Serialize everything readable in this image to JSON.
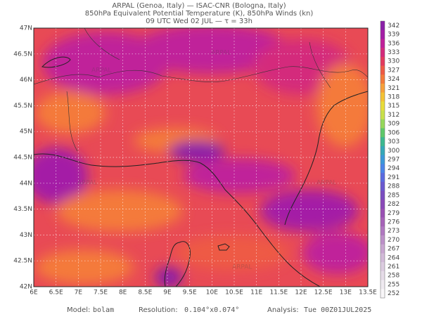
{
  "header": {
    "lines": [
      "ARPAL (Genoa, Italy)  —  ISAC-CNR (Bologna, Italy)",
      "850hPa Equivalent Potential Temperature (K), 850hPa Winds (kn)",
      "09 UTC Wed 02 JUL  —  τ = 33h"
    ]
  },
  "map": {
    "x_labels": [
      "6E",
      "6.5E",
      "7E",
      "7.5E",
      "8E",
      "8.5E",
      "9E",
      "9.5E",
      "10E",
      "10.5E",
      "11E",
      "11.5E",
      "12E",
      "12.5E",
      "13E",
      "13.5E"
    ],
    "y_labels": [
      "47N",
      "46.5N",
      "46N",
      "45.5N",
      "45N",
      "44.5N",
      "44N",
      "43.5N",
      "43N",
      "42.5N",
      "42N"
    ],
    "watermark": "ARPAL"
  },
  "colorbar": {
    "labels": [
      "342",
      "339",
      "336",
      "333",
      "330",
      "327",
      "324",
      "321",
      "318",
      "315",
      "312",
      "309",
      "306",
      "303",
      "300",
      "297",
      "294",
      "291",
      "288",
      "285",
      "282",
      "279",
      "276",
      "273",
      "270",
      "267",
      "264",
      "261",
      "258",
      "255",
      "252"
    ],
    "colors": [
      "#8a1fa8",
      "#a41ea6",
      "#c0209a",
      "#d42a7c",
      "#e33a5e",
      "#ee5a45",
      "#f47a3a",
      "#f7a03a",
      "#f4c234",
      "#e8dc3a",
      "#c8e04a",
      "#96d85a",
      "#5ec86a",
      "#3cb890",
      "#34a8b8",
      "#3a98d8",
      "#4a84e8",
      "#5a6ae0",
      "#6a58d0",
      "#7a4cc0",
      "#8a48b8",
      "#9a50b4",
      "#a662b8",
      "#b078c0",
      "#bc90c8",
      "#c8a6d0",
      "#d2bad8",
      "#dccce0",
      "#e6dce8",
      "#efeaf0",
      "#f8f6f8"
    ]
  },
  "footer": {
    "model_label": "Model:",
    "model": "bolam",
    "resolution_label": "Resolution:",
    "resolution": "0.104°x0.074°",
    "analysis_label": "Analysis:",
    "analysis": "Tue 00Z01JUL2025"
  }
}
